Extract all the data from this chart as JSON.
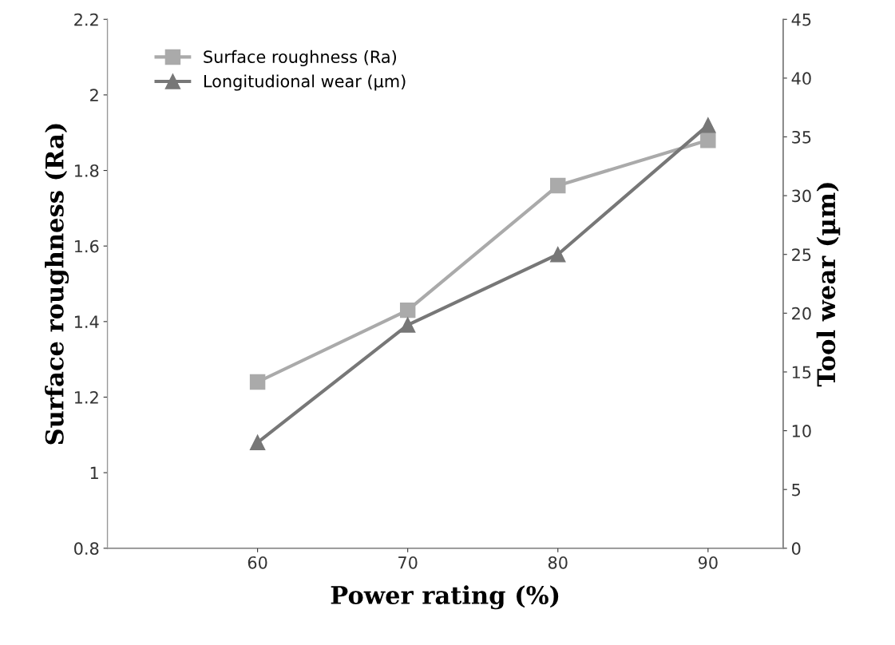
{
  "chart_data": {
    "type": "line",
    "xlabel": "Power rating (%)",
    "ylabel": "Surface roughness (Ra)",
    "y2label": "Tool wear (µm)",
    "x": [
      60,
      70,
      80,
      90
    ],
    "series": [
      {
        "name": "Surface roughness (Ra)",
        "color": "#aaaaaa",
        "marker": "square",
        "values": [
          1.24,
          1.43,
          1.76,
          1.88
        ]
      },
      {
        "name": "Longitudional wear (µm)",
        "color": "#777777",
        "marker": "triangle",
        "axis": "y2",
        "values": [
          9,
          19,
          25,
          36
        ]
      }
    ],
    "xlim": [
      50,
      95
    ],
    "xticks": [
      60,
      70,
      80,
      90
    ],
    "ylim": [
      0.8,
      2.2
    ],
    "yticks": [
      0.8,
      1,
      1.2,
      1.4,
      1.6,
      1.8,
      2,
      2.2
    ],
    "y2lim": [
      0,
      45
    ],
    "y2ticks": [
      0,
      5,
      10,
      15,
      20,
      25,
      30,
      35,
      40,
      45
    ],
    "legend": "top left",
    "grid": false
  }
}
